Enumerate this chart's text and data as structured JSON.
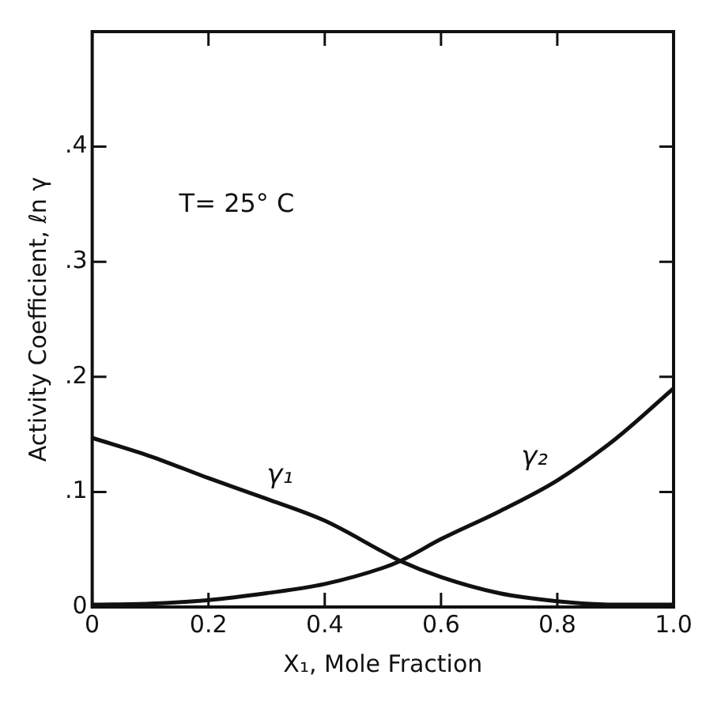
{
  "chart_data": {
    "type": "line",
    "xlabel": "X₁, Mole Fraction",
    "ylabel": "Activity Coefficient, ℓn γ",
    "annotations": [
      "T= 25° C"
    ],
    "x": [
      0,
      0.1,
      0.2,
      0.3,
      0.4,
      0.5,
      0.53,
      0.6,
      0.7,
      0.8,
      0.9,
      1.0
    ],
    "series": [
      {
        "name": "γ₁",
        "color": "#111111",
        "values": [
          0.147,
          0.131,
          0.112,
          0.094,
          0.075,
          0.048,
          0.04,
          0.026,
          0.012,
          0.005,
          0.002,
          0.002
        ]
      },
      {
        "name": "γ₂",
        "color": "#111111",
        "values": [
          0.002,
          0.003,
          0.006,
          0.012,
          0.02,
          0.034,
          0.04,
          0.059,
          0.083,
          0.11,
          0.146,
          0.19
        ]
      }
    ],
    "xlim": [
      0,
      1.0
    ],
    "xticks": [
      0,
      0.2,
      0.4,
      0.6,
      0.8,
      {
        "value": 1.0,
        "label": "1.0"
      }
    ],
    "ylim": [
      0,
      0.5
    ],
    "yticks": [
      0,
      {
        "value": 0.1,
        "label": ".1"
      },
      {
        "value": 0.2,
        "label": ".2"
      },
      {
        "value": 0.3,
        "label": ".3"
      },
      {
        "value": 0.4,
        "label": ".4"
      }
    ],
    "grid": false,
    "legend": false,
    "marker": "none",
    "line_style": "solid"
  }
}
